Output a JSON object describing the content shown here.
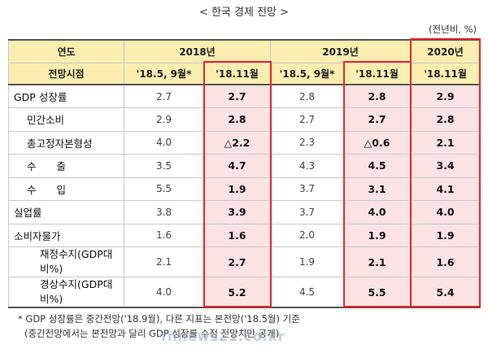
{
  "title": "< 한국 경제 전망 >",
  "unit": "(전년비, %)",
  "header": {
    "col_label": "연도",
    "years": [
      "2018년",
      "2019년",
      "2020년"
    ],
    "row_label": "전망시점",
    "periods": [
      "'18.5, 9월*",
      "'18.11월",
      "'18.5, 9월*",
      "'18.11월",
      "'18.11월"
    ]
  },
  "rows": [
    {
      "label": "GDP 성장률",
      "v": [
        "2.7",
        "2.7",
        "2.8",
        "2.8",
        "2.9"
      ]
    },
    {
      "label": "민간소비",
      "v": [
        "2.9",
        "2.8",
        "2.7",
        "2.7",
        "2.8"
      ]
    },
    {
      "label": "총고정자본형성",
      "v": [
        "4.0",
        "△2.2",
        "2.3",
        "△0.6",
        "2.1"
      ]
    },
    {
      "label": "수　　출",
      "v": [
        "3.5",
        "4.7",
        "4.3",
        "4.5",
        "3.4"
      ]
    },
    {
      "label": "수　　입",
      "v": [
        "5.5",
        "1.9",
        "3.7",
        "3.1",
        "4.1"
      ]
    },
    {
      "label": "실업률",
      "v": [
        "3.8",
        "3.9",
        "3.7",
        "4.0",
        "4.0"
      ]
    },
    {
      "label": "소비자물가",
      "v": [
        "1.6",
        "1.6",
        "2.0",
        "1.9",
        "1.9"
      ]
    },
    {
      "label": "재정수지(GDP대비%)",
      "v": [
        "2.1",
        "2.7",
        "1.9",
        "2.1",
        "1.6"
      ]
    },
    {
      "label": "경상수지(GDP대비%)",
      "v": [
        "4.0",
        "5.2",
        "4.5",
        "5.5",
        "5.4"
      ]
    }
  ],
  "notes": [
    "* GDP 성장률은 중간전망('18.9월), 다른 지표는 본전망('18.5월) 기준",
    "(중간전망에서는 본전망과 달리 GDP 성장률 수정 전망치만 공개)"
  ],
  "watermark": "fnnews21.co.kr",
  "colors": {
    "header_bg": "#fbeeb0",
    "highlight_bg": "#fde3e3",
    "box": "#e8262b"
  }
}
